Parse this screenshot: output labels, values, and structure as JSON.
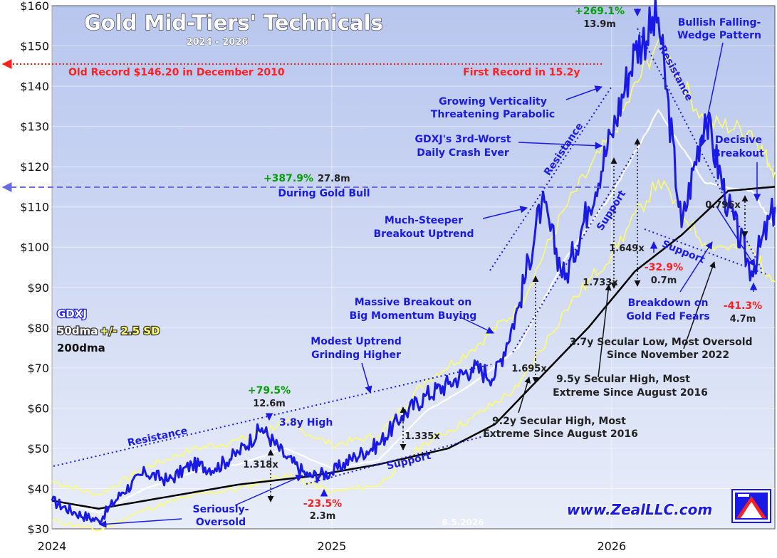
{
  "chart_data": {
    "type": "line",
    "title": "Gold Mid-Tiers' Technicals",
    "subtitle": "2024 - 2026",
    "ylim": [
      30,
      160
    ],
    "y_ticks": [
      30,
      40,
      50,
      60,
      70,
      80,
      90,
      100,
      110,
      120,
      130,
      140,
      150,
      160
    ],
    "y_tick_labels": [
      "$30",
      "$40",
      "$50",
      "$60",
      "$70",
      "$80",
      "$90",
      "$100",
      "$110",
      "$120",
      "$130",
      "$140",
      "$150",
      "$160"
    ],
    "x_tick_labels": [
      "2024",
      "2025",
      "2026"
    ],
    "x_ticks": [
      "2024-01",
      "2025-01",
      "2026-01"
    ],
    "x_range": [
      "2024-01",
      "2026-08"
    ],
    "grid": true,
    "colors": {
      "price": "#1a1ae6",
      "ma50": "#ffffff",
      "bands": "#ffff66",
      "ma200": "#000000",
      "plot_bg_top": "#b8c6ee",
      "plot_bg_bottom": "#e8edf9",
      "red_note": "#ff2020",
      "blue_note": "#1a1ae6",
      "green_note": "#00a000"
    },
    "legend": {
      "ticker": "GDXJ",
      "ma50": "50dma",
      "bands": "+/- 2.5 SD",
      "ma200": "200dma"
    },
    "series": [
      {
        "name": "GDXJ",
        "points": [
          [
            "2024-01",
            37
          ],
          [
            "2024-02",
            34
          ],
          [
            "2024-03",
            32
          ],
          [
            "2024-04",
            39
          ],
          [
            "2024-05",
            44
          ],
          [
            "2024-06",
            42
          ],
          [
            "2024-07",
            46
          ],
          [
            "2024-08",
            45
          ],
          [
            "2024-09",
            49
          ],
          [
            "2024-10",
            55
          ],
          [
            "2024-11",
            48
          ],
          [
            "2024-12",
            43
          ],
          [
            "2025-01",
            44
          ],
          [
            "2025-02",
            48
          ],
          [
            "2025-03",
            51
          ],
          [
            "2025-04",
            58
          ],
          [
            "2025-05",
            63
          ],
          [
            "2025-06",
            66
          ],
          [
            "2025-07",
            70
          ],
          [
            "2025-08",
            68
          ],
          [
            "2025-09",
            85
          ],
          [
            "2025-10",
            111
          ],
          [
            "2025-11",
            92
          ],
          [
            "2025-12",
            110
          ],
          [
            "2026-01",
            128
          ],
          [
            "2026-02",
            149
          ],
          [
            "2026-03",
            157
          ],
          [
            "2026-04",
            105
          ],
          [
            "2026-05",
            133
          ],
          [
            "2026-06",
            110
          ],
          [
            "2026-07",
            94
          ],
          [
            "2026-08",
            110
          ]
        ]
      },
      {
        "name": "50dma",
        "points": [
          [
            "2024-01",
            37
          ],
          [
            "2024-03",
            34
          ],
          [
            "2024-05",
            40
          ],
          [
            "2024-07",
            44
          ],
          [
            "2024-09",
            46
          ],
          [
            "2024-11",
            50
          ],
          [
            "2025-01",
            45
          ],
          [
            "2025-03",
            47
          ],
          [
            "2025-05",
            59
          ],
          [
            "2025-07",
            66
          ],
          [
            "2025-09",
            75
          ],
          [
            "2025-11",
            97
          ],
          [
            "2026-01",
            113
          ],
          [
            "2026-03",
            134
          ],
          [
            "2026-05",
            116
          ],
          [
            "2026-07",
            114
          ],
          [
            "2026-08",
            105
          ]
        ]
      },
      {
        "name": "200dma",
        "points": [
          [
            "2024-01",
            37
          ],
          [
            "2024-03",
            35
          ],
          [
            "2024-06",
            38
          ],
          [
            "2024-09",
            41
          ],
          [
            "2024-12",
            43
          ],
          [
            "2025-03",
            46
          ],
          [
            "2025-06",
            50
          ],
          [
            "2025-08",
            56
          ],
          [
            "2025-10",
            68
          ],
          [
            "2025-12",
            80
          ],
          [
            "2026-02",
            94
          ],
          [
            "2026-04",
            103
          ],
          [
            "2026-06",
            114
          ],
          [
            "2026-08",
            115
          ]
        ]
      }
    ],
    "annotations": {
      "old_record": "Old Record $146.20 in December 2010",
      "first_record": "First Record in 15.2y",
      "peak_gain": "+269.1%",
      "peak_gain_dur": "13.9m",
      "bull_gain": "+387.9%",
      "bull_gain_dur": "27.8m",
      "bull_label": "During Gold Bull",
      "verticality_1": "Growing Verticality",
      "verticality_2": "Threatening Parabolic",
      "crash_1": "GDXJ's 3rd-Worst",
      "crash_2": "Daily Crash Ever",
      "wedge_1": "Bullish Falling-",
      "wedge_2": "Wedge Pattern",
      "decisive_1": "Decisive",
      "decisive_2": "Breakout",
      "steeper_1": "Much-Steeper",
      "steeper_2": "Breakout Uptrend",
      "massive_1": "Massive Breakout on",
      "massive_2": "Big Momentum Buying",
      "modest_1": "Modest Uptrend",
      "modest_2": "Grinding Higher",
      "gain_2024": "+79.5%",
      "gain_2024_dur": "12.6m",
      "high_38": "3.8y High",
      "resistance": "Resistance",
      "support": "Support",
      "ratio_1318": "1.318x",
      "ratio_1335": "1.335x",
      "ratio_1695": "1.695x",
      "ratio_1733": "1.733x",
      "ratio_1649": "1.649x",
      "ratio_0796": "0.796x",
      "loss_235": "-23.5%",
      "loss_235_dur": "2.3m",
      "loss_329": "-32.9%",
      "loss_329_dur": "0.7m",
      "loss_413": "-41.3%",
      "loss_413_dur": "4.7m",
      "oversold_1": "Seriously-",
      "oversold_2": "Oversold",
      "breakdown_1": "Breakdown on",
      "breakdown_2": "Gold Fed Fears",
      "sec_low_1": "3.7y Secular Low, Most Oversold",
      "sec_low_2": "Since November 2022",
      "sec_high95_1": "9.5y Secular High, Most",
      "sec_high95_2": "Extreme Since August 2016",
      "sec_high92_1": "9.2y Secular High, Most",
      "sec_high92_2": "Extreme Since August 2016",
      "website": "www.ZealLLC.com",
      "date_stamp": "8.5.2026"
    }
  }
}
